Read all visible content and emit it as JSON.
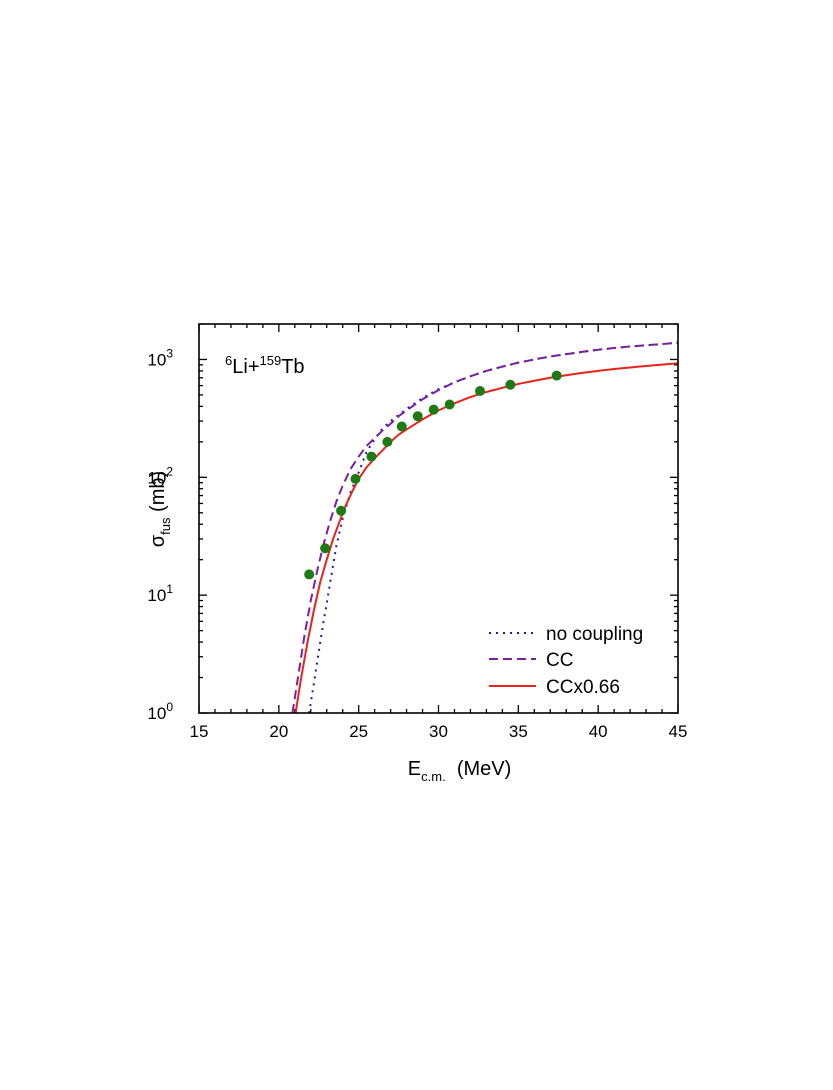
{
  "chart_data": {
    "type": "line",
    "annotation": {
      "mass_a": "6",
      "element_a": "Li",
      "plus": "+",
      "mass_b": "159",
      "element_b": "Tb"
    },
    "xlabel": {
      "main": "E",
      "sub": "c.m.",
      "tail": "  (MeV)"
    },
    "ylabel": {
      "main": "σ",
      "sub": "fus",
      "tail": " (mb)"
    },
    "xlim": [
      15,
      45
    ],
    "ylim": [
      1,
      2000
    ],
    "yscale": "log",
    "x_ticks": [
      15,
      20,
      25,
      30,
      35,
      40,
      45
    ],
    "x_tick_labels": [
      "15",
      "20",
      "25",
      "30",
      "35",
      "40",
      "45"
    ],
    "y_ticks": [
      {
        "value": 1,
        "base": "10",
        "exp": "0"
      },
      {
        "value": 10,
        "base": "10",
        "exp": "1"
      },
      {
        "value": 100,
        "base": "10",
        "exp": "2"
      },
      {
        "value": 1000,
        "base": "10",
        "exp": "3"
      }
    ],
    "legend_position": "bottom-right",
    "series": [
      {
        "name": "no coupling",
        "style": "dotted",
        "color": "#1f1a9e",
        "x": [
          21.9,
          22.2,
          22.5,
          22.8,
          23.0,
          23.3,
          23.6,
          24.0,
          24.5,
          25.0,
          25.5,
          26.0,
          26.5,
          27.0,
          28.0,
          29.0,
          30.0,
          31.0,
          32.0,
          33.0,
          34.0,
          35.0,
          36.0,
          37.0,
          38.0,
          39.0,
          40.0,
          41.0,
          42.0,
          43.0,
          44.0,
          45.0
        ],
        "y": [
          1.0,
          1.8,
          3.3,
          6.0,
          8.5,
          15,
          26,
          45,
          75,
          110,
          165,
          210,
          260,
          300,
          380,
          470,
          560,
          640,
          720,
          800,
          870,
          940,
          1000,
          1060,
          1110,
          1160,
          1210,
          1250,
          1290,
          1320,
          1350,
          1390
        ]
      },
      {
        "name": "CC",
        "style": "dashed",
        "color": "#7a1fa2",
        "x": [
          20.85,
          21.2,
          21.6,
          22.0,
          22.4,
          22.8,
          23.2,
          23.6,
          24.0,
          24.5,
          25.0,
          25.5,
          26.0,
          26.5,
          27.0,
          27.5,
          28.0,
          29.0,
          30.0,
          31.0,
          32.0,
          33.0,
          34.0,
          35.0,
          36.0,
          37.0,
          38.0,
          39.0,
          40.0,
          41.0,
          42.0,
          43.0,
          44.0,
          45.0
        ],
        "y": [
          1.0,
          2.0,
          4.5,
          9.0,
          16,
          27,
          42,
          62,
          85,
          118,
          150,
          185,
          215,
          250,
          285,
          330,
          370,
          460,
          550,
          640,
          720,
          800,
          870,
          940,
          1000,
          1060,
          1110,
          1160,
          1210,
          1250,
          1290,
          1320,
          1350,
          1390
        ]
      },
      {
        "name": "CCx0.66",
        "style": "solid",
        "color": "#e8231c",
        "x": [
          21.05,
          21.4,
          21.8,
          22.2,
          22.6,
          23.0,
          23.4,
          23.8,
          24.2,
          24.6,
          25.0,
          25.5,
          26.0,
          26.5,
          27.0,
          27.5,
          28.0,
          29.0,
          30.0,
          31.0,
          32.0,
          33.0,
          34.0,
          35.0,
          36.0,
          37.0,
          38.0,
          39.0,
          40.0,
          41.0,
          42.0,
          43.0,
          44.0,
          45.0
        ],
        "y": [
          1.0,
          2.0,
          4.0,
          7.5,
          13,
          20,
          30,
          42,
          58,
          76,
          97,
          122,
          145,
          170,
          200,
          230,
          255,
          310,
          370,
          425,
          480,
          530,
          575,
          620,
          660,
          700,
          735,
          770,
          800,
          830,
          855,
          880,
          905,
          930
        ]
      }
    ],
    "points": {
      "name": "data",
      "color": "#1e7a14",
      "x": [
        21.9,
        22.9,
        23.9,
        24.8,
        25.8,
        26.8,
        27.7,
        28.7,
        29.7,
        30.7,
        32.6,
        34.5,
        37.4
      ],
      "y": [
        15,
        25,
        52,
        97,
        150,
        200,
        270,
        330,
        375,
        415,
        540,
        610,
        730
      ]
    },
    "legend": [
      {
        "label": "no coupling",
        "style": "dotted",
        "color": "#1f1a9e"
      },
      {
        "label": "CC",
        "style": "dashed",
        "color": "#7a1fa2"
      },
      {
        "label": "CCx0.66",
        "style": "solid",
        "color": "#e8231c"
      }
    ]
  }
}
